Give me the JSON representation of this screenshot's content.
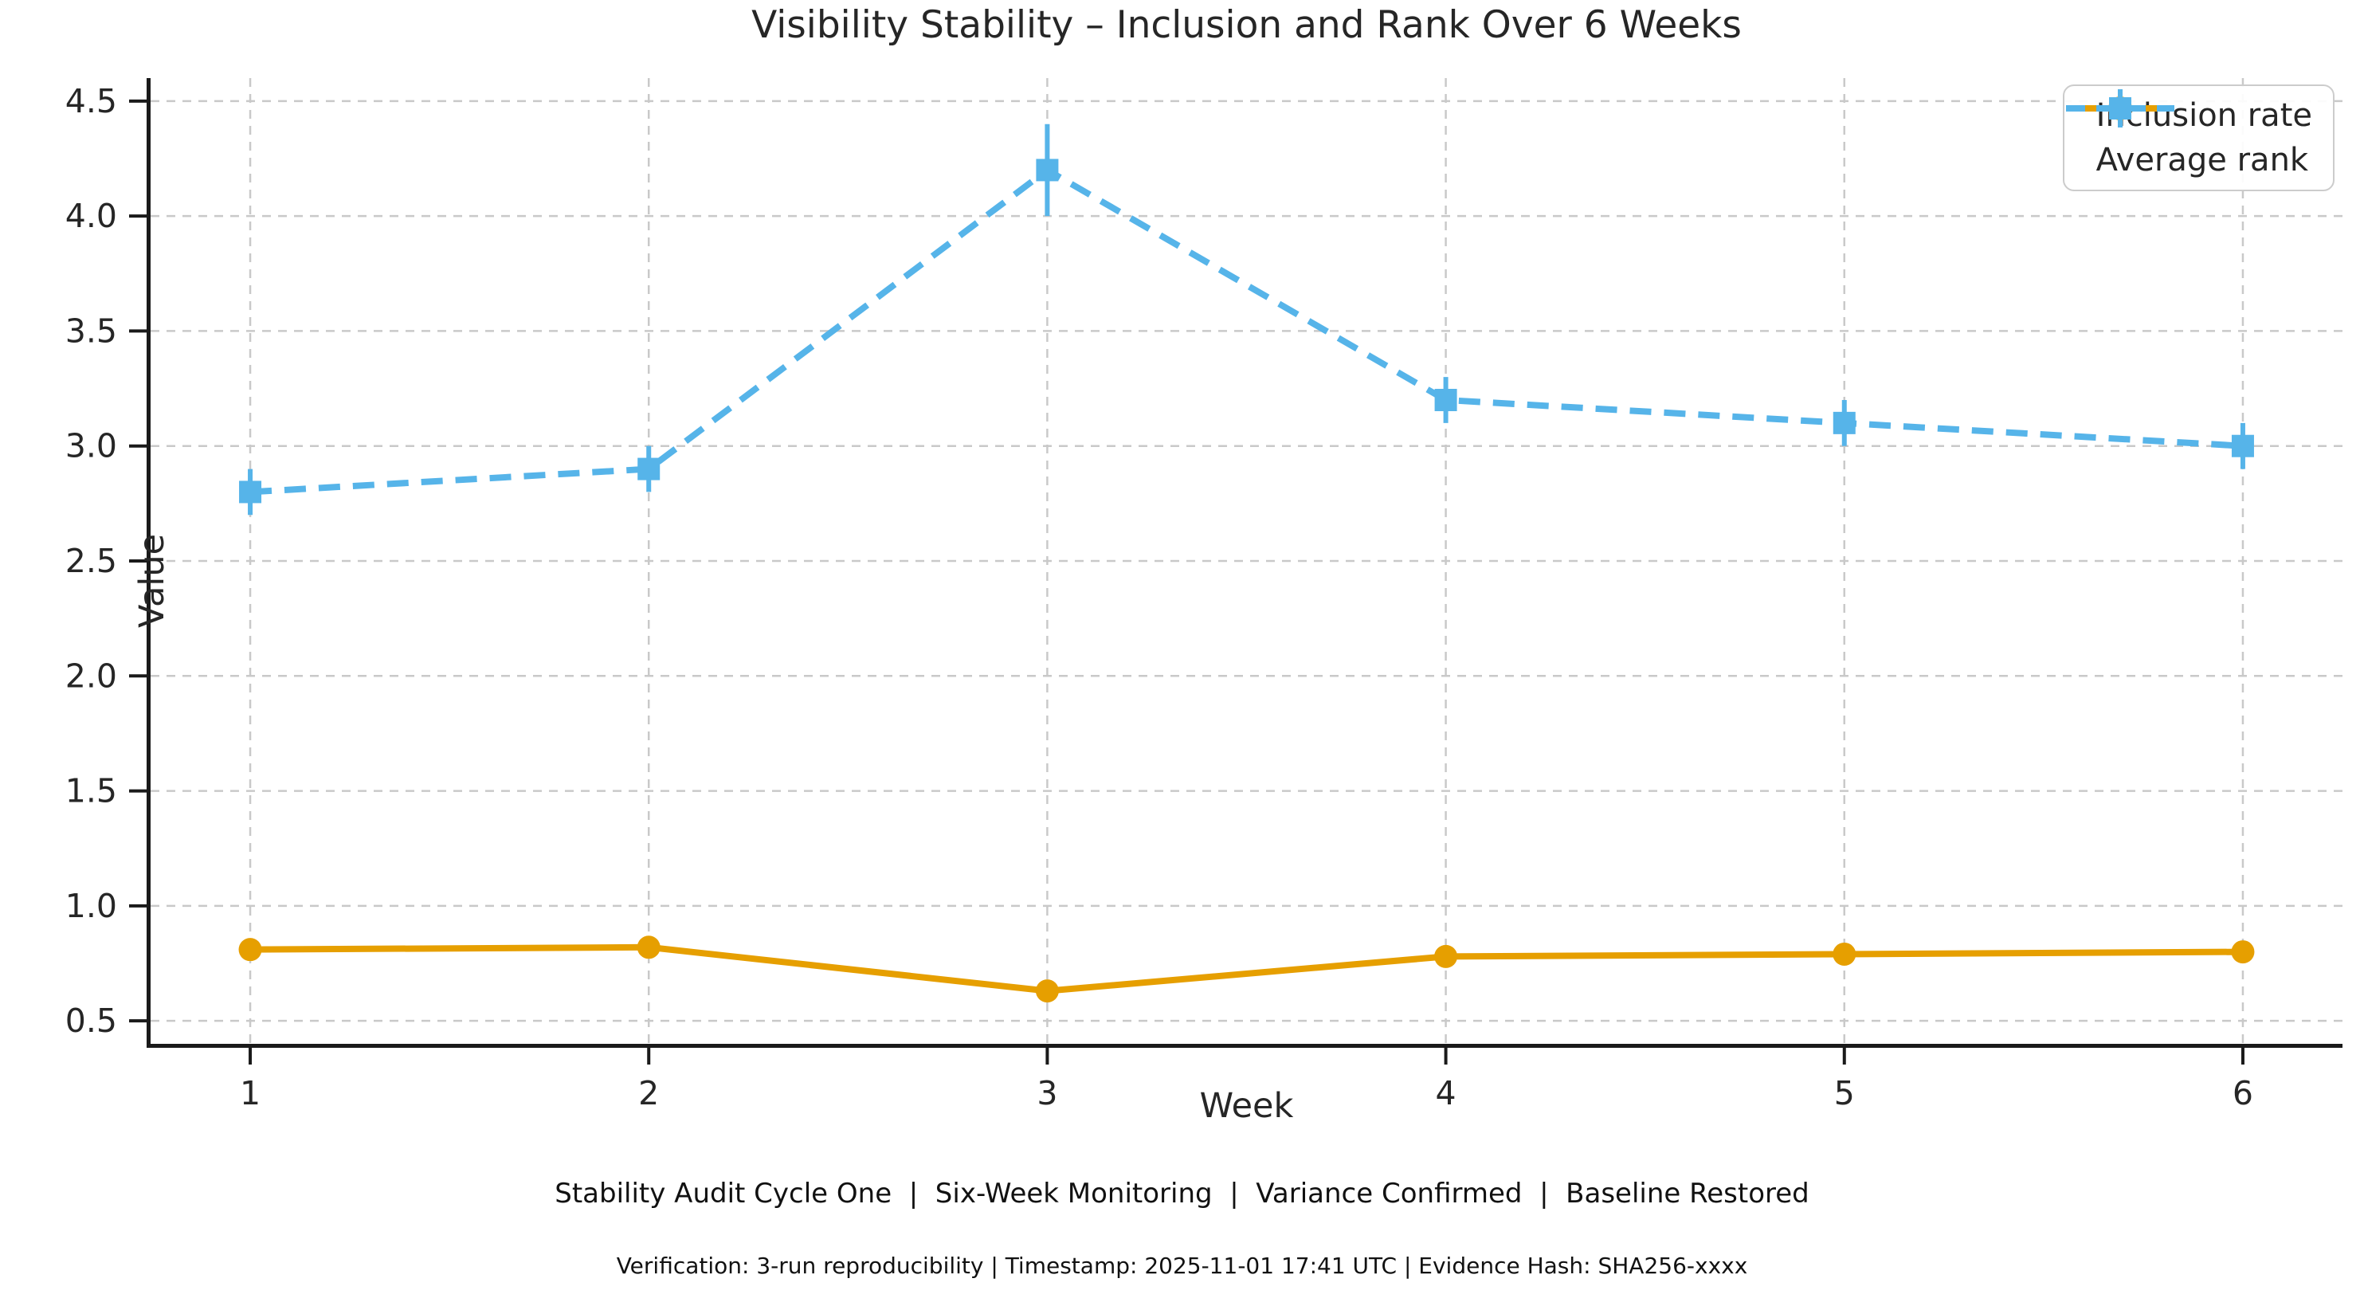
{
  "title": "Visibility Stability – Inclusion and Rank Over 6 Weeks",
  "footer": {
    "banner": "Stability Audit Cycle One  |  Six-Week Monitoring  |  Variance Confirmed  |  Baseline Restored",
    "verification": "Verification: 3-run reproducibility | Timestamp: 2025-11-01 17:41 UTC | Evidence Hash: SHA256-xxxx"
  },
  "colors": {
    "inclusion_rate": "#E69F00",
    "average_rank": "#56B4E9",
    "grid": "#c9c9c9",
    "spine": "#1a1a1a",
    "text": "#262626"
  },
  "chart_data": {
    "type": "line",
    "title": "Visibility Stability – Inclusion and Rank Over 6 Weeks",
    "xlabel": "Week",
    "ylabel": "Value",
    "x": [
      1,
      2,
      3,
      4,
      5,
      6
    ],
    "xticks": [
      1,
      2,
      3,
      4,
      5,
      6
    ],
    "yticks": [
      0.5,
      1.0,
      1.5,
      2.0,
      2.5,
      3.0,
      3.5,
      4.0,
      4.5
    ],
    "xlim": [
      0.75,
      6.25
    ],
    "ylim": [
      0.4,
      4.6
    ],
    "grid": true,
    "grid_style": "dashed",
    "legend_position": "upper right",
    "series": [
      {
        "name": "Inclusion rate",
        "color": "#E69F00",
        "line_style": "solid",
        "marker": "circle",
        "values": [
          0.81,
          0.82,
          0.63,
          0.78,
          0.79,
          0.8
        ],
        "yerr": [
          0.02,
          0.02,
          0.03,
          0.02,
          0.02,
          0.02
        ]
      },
      {
        "name": "Average rank",
        "color": "#56B4E9",
        "line_style": "dashed",
        "marker": "square",
        "values": [
          2.8,
          2.9,
          4.2,
          3.2,
          3.1,
          3.0
        ],
        "yerr": [
          0.1,
          0.1,
          0.2,
          0.1,
          0.1,
          0.1
        ]
      }
    ]
  }
}
